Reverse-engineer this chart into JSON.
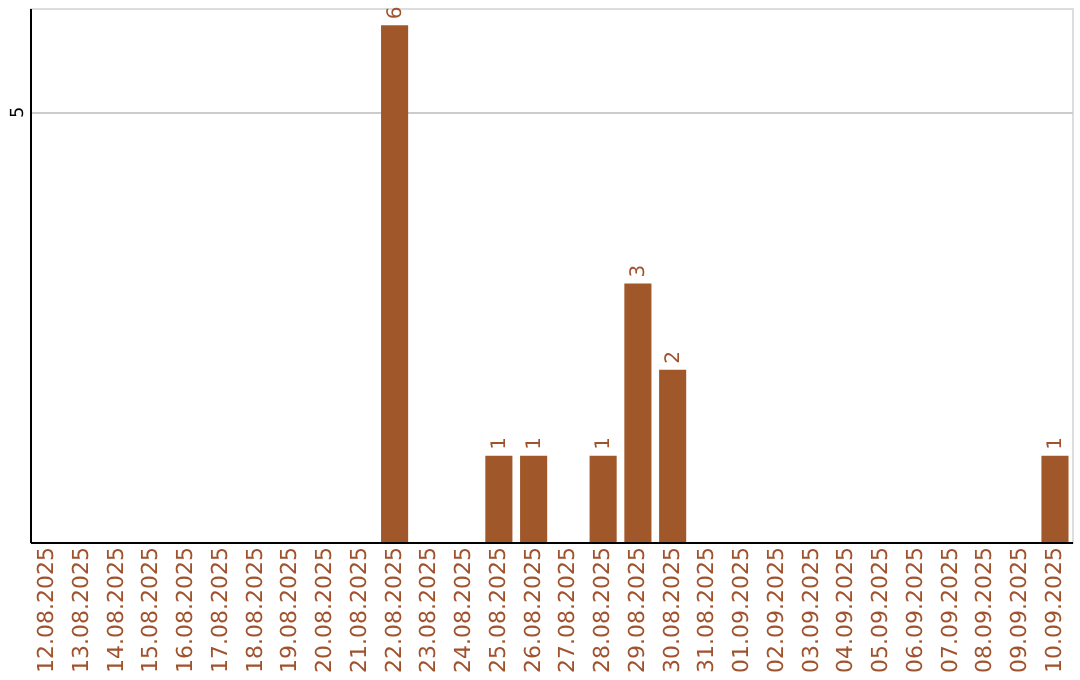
{
  "chart_data": {
    "type": "bar",
    "categories": [
      "12.08.2025",
      "13.08.2025",
      "14.08.2025",
      "15.08.2025",
      "16.08.2025",
      "17.08.2025",
      "18.08.2025",
      "19.08.2025",
      "20.08.2025",
      "21.08.2025",
      "22.08.2025",
      "23.08.2025",
      "24.08.2025",
      "25.08.2025",
      "26.08.2025",
      "27.08.2025",
      "28.08.2025",
      "29.08.2025",
      "30.08.2025",
      "31.08.2025",
      "01.09.2025",
      "02.09.2025",
      "03.09.2025",
      "04.09.2025",
      "05.09.2025",
      "06.09.2025",
      "07.09.2025",
      "08.09.2025",
      "09.09.2025",
      "10.09.2025"
    ],
    "values": [
      0,
      0,
      0,
      0,
      0,
      0,
      0,
      0,
      0,
      0,
      6,
      0,
      0,
      1,
      1,
      0,
      1,
      3,
      2,
      0,
      0,
      0,
      0,
      0,
      0,
      0,
      0,
      0,
      0,
      1
    ],
    "value_labels": [
      null,
      null,
      null,
      null,
      null,
      null,
      null,
      null,
      null,
      null,
      "6",
      null,
      null,
      "1",
      "1",
      null,
      "1",
      "3",
      "2",
      null,
      null,
      null,
      null,
      null,
      null,
      null,
      null,
      null,
      null,
      "1"
    ],
    "color": "#a0582a",
    "ylim": [
      0,
      6.2
    ],
    "yticks": [
      5
    ],
    "grid": "y"
  }
}
